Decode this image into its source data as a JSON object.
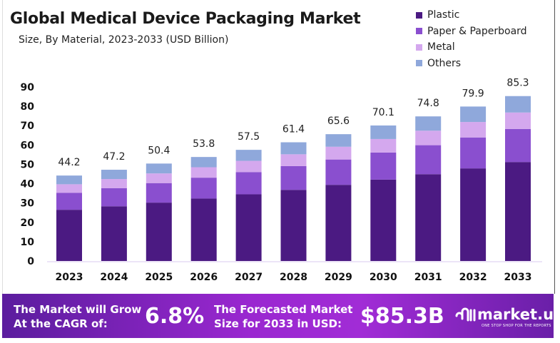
{
  "chart_data": {
    "type": "bar",
    "stacked": true,
    "title": "Global Medical Device Packaging Market",
    "subtitle": "Size, By Material, 2023-2033 (USD Billion)",
    "categories": [
      "2023",
      "2024",
      "2025",
      "2026",
      "2027",
      "2028",
      "2029",
      "2030",
      "2031",
      "2032",
      "2033"
    ],
    "totals": [
      44.2,
      47.2,
      50.4,
      53.8,
      57.5,
      61.4,
      65.6,
      70.1,
      74.8,
      79.9,
      85.3
    ],
    "series": [
      {
        "name": "Plastic",
        "color": "#4b1a82",
        "values": [
          26.5,
          28.3,
          30.2,
          32.3,
          34.5,
          36.8,
          39.4,
          42.1,
          44.9,
          47.9,
          51.2
        ]
      },
      {
        "name": "Paper & Paperboard",
        "color": "#8a4fcf",
        "values": [
          8.8,
          9.4,
          10.1,
          10.8,
          11.5,
          12.3,
          13.1,
          14.0,
          15.0,
          16.0,
          17.1
        ]
      },
      {
        "name": "Metal",
        "color": "#d4a8ee",
        "values": [
          4.4,
          4.7,
          5.0,
          5.4,
          5.8,
          6.1,
          6.6,
          7.0,
          7.5,
          8.0,
          8.5
        ]
      },
      {
        "name": "Others",
        "color": "#8fa8db",
        "values": [
          4.5,
          4.8,
          5.1,
          5.3,
          5.7,
          6.2,
          6.5,
          7.0,
          7.4,
          8.0,
          8.5
        ]
      }
    ],
    "yticks": [
      0,
      10,
      20,
      30,
      40,
      50,
      60,
      70,
      80,
      90
    ],
    "ylim": [
      0,
      90
    ],
    "grid": false,
    "legend": "top-right"
  },
  "banner": {
    "cagr_label_line1": "The Market will Grow",
    "cagr_label_line2": "At the CAGR of:",
    "cagr_value": "6.8%",
    "forecast_label_line1": "The Forecasted Market",
    "forecast_label_line2": "Size for 2033 in USD:",
    "forecast_value": "$85.3B",
    "brand": "market.us",
    "brand_tagline": "ONE STOP SHOP FOR THE REPORTS"
  }
}
